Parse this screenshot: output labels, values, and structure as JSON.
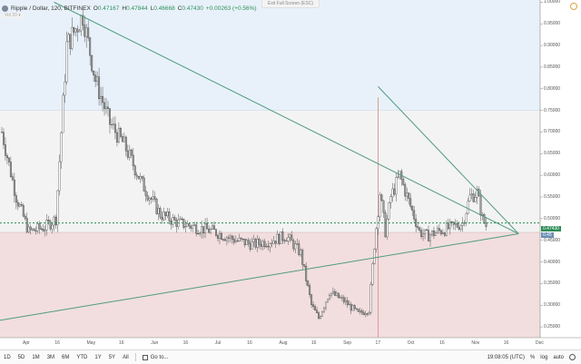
{
  "header": {
    "symbol": "Ripple / Dollar, 120, BITFINEX",
    "ohlc": [
      {
        "k": "O",
        "v": "0.47167"
      },
      {
        "k": "H",
        "v": "0.47844"
      },
      {
        "k": "L",
        "v": "0.46668"
      },
      {
        "k": "C",
        "v": "0.47430"
      }
    ],
    "change": "+0.00263 (+0.56%)",
    "sub": "Vol 20 ▾",
    "fullscreen_label": "Exit Full Screen (ESC)"
  },
  "price_tags": {
    "last": "0.47430",
    "second": "0.45"
  },
  "bottom": {
    "timeframes": [
      "1D",
      "5D",
      "1M",
      "3M",
      "6M",
      "YTD",
      "1Y",
      "5Y",
      "All"
    ],
    "goto": "Go to...",
    "clock": "19:08:05 (UTC)",
    "pct": "%",
    "log": "log",
    "auto": "auto"
  },
  "chart_data": {
    "type": "candlestick",
    "title": "Ripple / Dollar, 120, BITFINEX",
    "x_ticks": [
      "Apr",
      "16",
      "May",
      "16",
      "Jun",
      "16",
      "Jul",
      "16",
      "Aug",
      "16",
      "Sep",
      "17",
      "Oct",
      "16",
      "Nov",
      "16",
      "Dec"
    ],
    "y_ticks": [
      1.0,
      0.95,
      0.9,
      0.85,
      0.8,
      0.75,
      0.7,
      0.65,
      0.6,
      0.55,
      0.5,
      0.45,
      0.4,
      0.35,
      0.3,
      0.25
    ],
    "y_tick_labels": [
      "1.00000",
      "0.95000",
      "0.90000",
      "0.85000",
      "0.80000",
      "0.75000",
      "0.70000",
      "0.65000",
      "0.60000",
      "0.55000",
      "0.50000",
      "0.45000",
      "0.40000",
      "0.35000",
      "0.30000",
      "0.25000"
    ],
    "ylim": [
      0.225,
      1.005
    ],
    "last_price": 0.4743,
    "zones": [
      {
        "from": 0.75,
        "to": 1.005,
        "color": "#e8f1fa"
      },
      {
        "from": 0.468,
        "to": 0.75,
        "color": "#f3f3f3"
      },
      {
        "from": 0.225,
        "to": 0.468,
        "color": "#f2dede"
      }
    ],
    "anchors": [
      [
        0,
        0.7
      ],
      [
        8,
        0.55
      ],
      [
        15,
        0.47
      ],
      [
        24,
        0.48
      ],
      [
        30,
        0.5
      ],
      [
        36,
        0.9
      ],
      [
        45,
        0.97
      ],
      [
        52,
        0.82
      ],
      [
        60,
        0.72
      ],
      [
        68,
        0.67
      ],
      [
        78,
        0.58
      ],
      [
        88,
        0.51
      ],
      [
        98,
        0.49
      ],
      [
        108,
        0.48
      ],
      [
        118,
        0.47
      ],
      [
        130,
        0.45
      ],
      [
        140,
        0.44
      ],
      [
        150,
        0.45
      ],
      [
        158,
        0.46
      ],
      [
        166,
        0.42
      ],
      [
        172,
        0.3
      ],
      [
        176,
        0.27
      ],
      [
        182,
        0.33
      ],
      [
        190,
        0.31
      ],
      [
        198,
        0.28
      ],
      [
        204,
        0.29
      ],
      [
        207,
        0.44
      ],
      [
        210,
        0.56
      ],
      [
        213,
        0.47
      ],
      [
        216,
        0.55
      ],
      [
        221,
        0.6
      ],
      [
        226,
        0.54
      ],
      [
        232,
        0.47
      ],
      [
        236,
        0.46
      ],
      [
        242,
        0.47
      ],
      [
        250,
        0.48
      ],
      [
        256,
        0.49
      ],
      [
        260,
        0.55
      ],
      [
        264,
        0.56
      ],
      [
        267,
        0.5
      ],
      [
        270,
        0.475
      ]
    ],
    "candle_count": 270,
    "trendlines": [
      {
        "from": [
          30,
          1.0
        ],
        "to": [
          288,
          0.465
        ],
        "color": "#4f9b7e"
      },
      {
        "from": [
          0,
          0.265
        ],
        "to": [
          288,
          0.465
        ],
        "color": "#4f9b7e"
      },
      {
        "from": [
          210,
          0.805
        ],
        "to": [
          288,
          0.465
        ],
        "color": "#4f9b7e"
      },
      {
        "from": [
          0,
          0.49
        ],
        "to": [
          300,
          0.49
        ],
        "color": "#2e8b57",
        "dash": true
      }
    ],
    "vertical_lines": [
      {
        "at": 210,
        "color": "#d99",
        "width": 1
      }
    ],
    "colors": {
      "up": "#3c3c3c",
      "down": "#9a9a9a",
      "wick": "#555555",
      "axis": "#888888"
    }
  }
}
